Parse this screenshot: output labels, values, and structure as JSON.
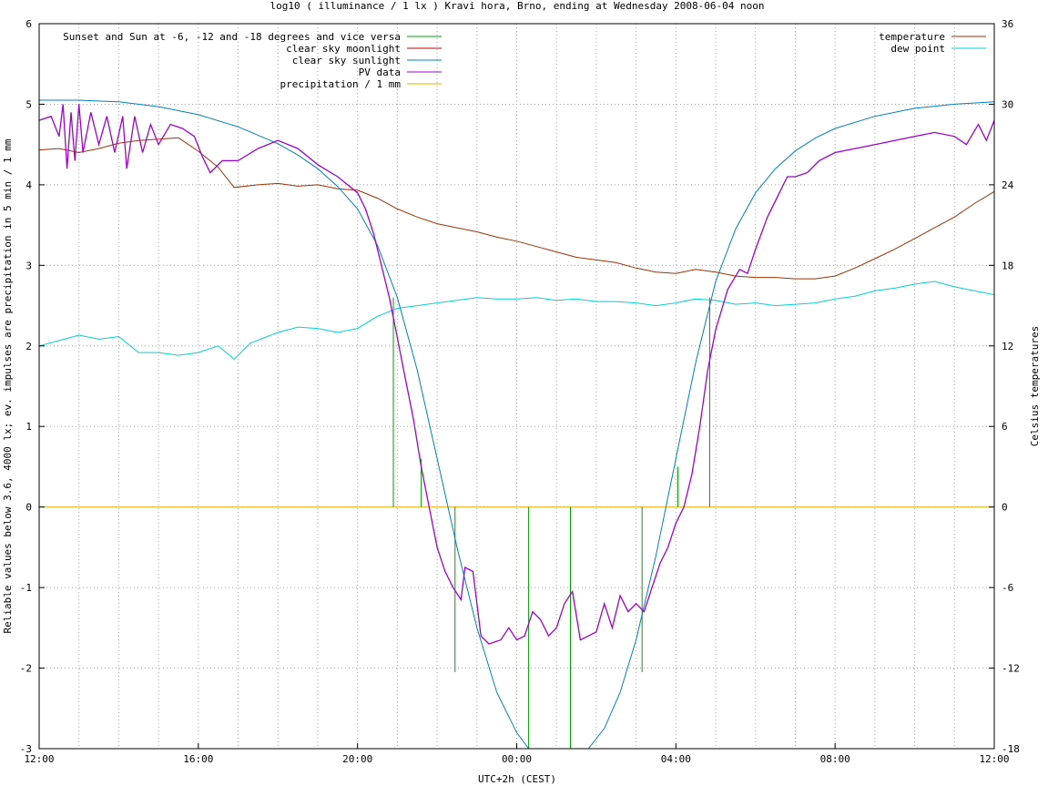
{
  "chart_data": {
    "type": "line",
    "title": "log10 ( illuminance / 1 lx ) Kravi hora, Brno, ending at Wednesday 2008-06-04 noon",
    "xlabel": "UTC+2h (CEST)",
    "ylabel_left": "Reliable values below 3.6, 4000 lx; ev. impulses are precipitation in 5 min / 1 mm",
    "ylabel_right": "Celsius temperatures",
    "x_unit": "hours from 12:00 (2008-06-03)",
    "xlim": [
      0,
      24
    ],
    "ylim_left": [
      -3,
      6
    ],
    "ylim_right": [
      -18,
      36
    ],
    "x_ticks": [
      {
        "x": 0,
        "label": "12:00"
      },
      {
        "x": 4,
        "label": "16:00"
      },
      {
        "x": 8,
        "label": "20:00"
      },
      {
        "x": 12,
        "label": "00:00"
      },
      {
        "x": 16,
        "label": "04:00"
      },
      {
        "x": 20,
        "label": "08:00"
      },
      {
        "x": 24,
        "label": "12:00"
      }
    ],
    "y_ticks_left": [
      "-3",
      "-2",
      "-1",
      "0",
      "1",
      "2",
      "3",
      "4",
      "5",
      "6"
    ],
    "y_ticks_right": [
      "-18",
      "-12",
      "-6",
      "0",
      "6",
      "12",
      "18",
      "24",
      "30",
      "36"
    ],
    "grid": true,
    "legend_left": [
      {
        "name": "Sunset and Sun at -6, -12 and -18 degrees and vice versa",
        "color": "#00a000"
      },
      {
        "name": "clear sky moonlight",
        "color": "#c00000"
      },
      {
        "name": "clear sky sunlight",
        "color": "#0080c0"
      },
      {
        "name": "PV data",
        "color": "#a000d0"
      },
      {
        "name": "precipitation / 1 mm",
        "color": "#e0b000"
      }
    ],
    "legend_right": [
      {
        "name": "temperature",
        "color": "#a03000"
      },
      {
        "name": "dew point",
        "color": "#00d0d8"
      }
    ],
    "series": {
      "sunlight": {
        "axis": "left",
        "points": [
          [
            0,
            5.05
          ],
          [
            1,
            5.05
          ],
          [
            2,
            5.03
          ],
          [
            3,
            4.97
          ],
          [
            4,
            4.87
          ],
          [
            5,
            4.72
          ],
          [
            6,
            4.51
          ],
          [
            6.5,
            4.37
          ],
          [
            7,
            4.2
          ],
          [
            7.5,
            3.98
          ],
          [
            8,
            3.7
          ],
          [
            8.5,
            3.25
          ],
          [
            9,
            2.6
          ],
          [
            9.5,
            1.7
          ],
          [
            10,
            0.6
          ],
          [
            10.5,
            -0.5
          ],
          [
            11,
            -1.5
          ],
          [
            11.5,
            -2.3
          ],
          [
            12,
            -2.8
          ],
          [
            12.3,
            -3.0
          ],
          [
            13.8,
            -3.0
          ],
          [
            14.2,
            -2.75
          ],
          [
            14.6,
            -2.3
          ],
          [
            15,
            -1.65
          ],
          [
            15.5,
            -0.6
          ],
          [
            16,
            0.6
          ],
          [
            16.5,
            1.8
          ],
          [
            17,
            2.8
          ],
          [
            17.5,
            3.45
          ],
          [
            18,
            3.9
          ],
          [
            18.5,
            4.2
          ],
          [
            19,
            4.42
          ],
          [
            19.5,
            4.58
          ],
          [
            20,
            4.7
          ],
          [
            21,
            4.85
          ],
          [
            22,
            4.95
          ],
          [
            23,
            5.0
          ],
          [
            24,
            5.03
          ]
        ]
      },
      "pv": {
        "axis": "left",
        "points": [
          [
            0,
            4.8
          ],
          [
            0.3,
            4.85
          ],
          [
            0.5,
            4.6
          ],
          [
            0.6,
            5.0
          ],
          [
            0.7,
            4.2
          ],
          [
            0.8,
            4.9
          ],
          [
            0.9,
            4.3
          ],
          [
            1.0,
            5.0
          ],
          [
            1.1,
            4.4
          ],
          [
            1.3,
            4.9
          ],
          [
            1.5,
            4.5
          ],
          [
            1.7,
            4.85
          ],
          [
            1.9,
            4.4
          ],
          [
            2.1,
            4.85
          ],
          [
            2.2,
            4.2
          ],
          [
            2.4,
            4.85
          ],
          [
            2.6,
            4.4
          ],
          [
            2.8,
            4.75
          ],
          [
            3.0,
            4.5
          ],
          [
            3.3,
            4.75
          ],
          [
            3.6,
            4.7
          ],
          [
            3.9,
            4.6
          ],
          [
            4.1,
            4.35
          ],
          [
            4.3,
            4.15
          ],
          [
            4.6,
            4.3
          ],
          [
            5.0,
            4.3
          ],
          [
            5.5,
            4.45
          ],
          [
            6.0,
            4.55
          ],
          [
            6.5,
            4.45
          ],
          [
            7.0,
            4.25
          ],
          [
            7.5,
            4.1
          ],
          [
            8.0,
            3.9
          ],
          [
            8.2,
            3.7
          ],
          [
            8.4,
            3.4
          ],
          [
            8.6,
            3.0
          ],
          [
            8.8,
            2.6
          ],
          [
            9.0,
            2.1
          ],
          [
            9.2,
            1.6
          ],
          [
            9.4,
            1.1
          ],
          [
            9.6,
            0.5
          ],
          [
            9.8,
            0.0
          ],
          [
            10.0,
            -0.5
          ],
          [
            10.2,
            -0.8
          ],
          [
            10.4,
            -1.0
          ],
          [
            10.6,
            -1.15
          ],
          [
            10.7,
            -0.75
          ],
          [
            10.9,
            -0.8
          ],
          [
            11.1,
            -1.6
          ],
          [
            11.3,
            -1.7
          ],
          [
            11.6,
            -1.65
          ],
          [
            11.8,
            -1.5
          ],
          [
            12.0,
            -1.65
          ],
          [
            12.2,
            -1.6
          ],
          [
            12.4,
            -1.3
          ],
          [
            12.6,
            -1.4
          ],
          [
            12.8,
            -1.6
          ],
          [
            13.0,
            -1.5
          ],
          [
            13.2,
            -1.2
          ],
          [
            13.4,
            -1.05
          ],
          [
            13.6,
            -1.65
          ],
          [
            13.8,
            -1.6
          ],
          [
            14.0,
            -1.55
          ],
          [
            14.2,
            -1.2
          ],
          [
            14.4,
            -1.5
          ],
          [
            14.6,
            -1.1
          ],
          [
            14.8,
            -1.3
          ],
          [
            15.0,
            -1.2
          ],
          [
            15.2,
            -1.3
          ],
          [
            15.4,
            -1.0
          ],
          [
            15.6,
            -0.7
          ],
          [
            15.8,
            -0.5
          ],
          [
            16.0,
            -0.2
          ],
          [
            16.2,
            0.0
          ],
          [
            16.4,
            0.4
          ],
          [
            16.6,
            1.0
          ],
          [
            16.8,
            1.7
          ],
          [
            17.0,
            2.2
          ],
          [
            17.3,
            2.7
          ],
          [
            17.6,
            2.95
          ],
          [
            17.8,
            2.9
          ],
          [
            18.0,
            3.2
          ],
          [
            18.3,
            3.6
          ],
          [
            18.6,
            3.9
          ],
          [
            18.8,
            4.1
          ],
          [
            19.0,
            4.1
          ],
          [
            19.3,
            4.15
          ],
          [
            19.6,
            4.3
          ],
          [
            20.0,
            4.4
          ],
          [
            20.5,
            4.45
          ],
          [
            21.0,
            4.5
          ],
          [
            21.5,
            4.55
          ],
          [
            22.0,
            4.6
          ],
          [
            22.5,
            4.65
          ],
          [
            23.0,
            4.6
          ],
          [
            23.3,
            4.5
          ],
          [
            23.6,
            4.75
          ],
          [
            23.8,
            4.55
          ],
          [
            24.0,
            4.8
          ]
        ]
      },
      "temperature": {
        "axis": "right",
        "points": [
          [
            0,
            26.6
          ],
          [
            0.5,
            26.7
          ],
          [
            1,
            26.4
          ],
          [
            1.5,
            26.7
          ],
          [
            2,
            27.1
          ],
          [
            2.5,
            27.3
          ],
          [
            3,
            27.4
          ],
          [
            3.5,
            27.5
          ],
          [
            4,
            26.5
          ],
          [
            4.5,
            25.3
          ],
          [
            4.9,
            23.8
          ],
          [
            5.5,
            24.0
          ],
          [
            6,
            24.1
          ],
          [
            6.5,
            23.9
          ],
          [
            7,
            24.0
          ],
          [
            7.5,
            23.7
          ],
          [
            8,
            23.6
          ],
          [
            8.5,
            23.0
          ],
          [
            9,
            22.2
          ],
          [
            9.5,
            21.6
          ],
          [
            10,
            21.1
          ],
          [
            10.5,
            20.8
          ],
          [
            11,
            20.5
          ],
          [
            11.5,
            20.1
          ],
          [
            12,
            19.8
          ],
          [
            12.5,
            19.4
          ],
          [
            13,
            19.0
          ],
          [
            13.5,
            18.6
          ],
          [
            14,
            18.4
          ],
          [
            14.5,
            18.2
          ],
          [
            15,
            17.8
          ],
          [
            15.5,
            17.5
          ],
          [
            16,
            17.4
          ],
          [
            16.5,
            17.7
          ],
          [
            17,
            17.5
          ],
          [
            17.5,
            17.2
          ],
          [
            18,
            17.1
          ],
          [
            18.5,
            17.1
          ],
          [
            19,
            17.0
          ],
          [
            19.5,
            17.0
          ],
          [
            20,
            17.2
          ],
          [
            20.5,
            17.8
          ],
          [
            21,
            18.5
          ],
          [
            21.5,
            19.2
          ],
          [
            22,
            20.0
          ],
          [
            22.5,
            20.8
          ],
          [
            23,
            21.6
          ],
          [
            23.5,
            22.6
          ],
          [
            24,
            23.5
          ]
        ]
      },
      "dew_point": {
        "axis": "right",
        "points": [
          [
            0,
            12.0
          ],
          [
            0.5,
            12.4
          ],
          [
            1,
            12.8
          ],
          [
            1.5,
            12.5
          ],
          [
            2,
            12.7
          ],
          [
            2.5,
            11.5
          ],
          [
            3,
            11.5
          ],
          [
            3.5,
            11.3
          ],
          [
            4,
            11.5
          ],
          [
            4.5,
            12.0
          ],
          [
            4.9,
            11.0
          ],
          [
            5.3,
            12.2
          ],
          [
            6,
            13.0
          ],
          [
            6.5,
            13.4
          ],
          [
            7,
            13.3
          ],
          [
            7.5,
            13.0
          ],
          [
            8,
            13.3
          ],
          [
            8.5,
            14.2
          ],
          [
            9,
            14.8
          ],
          [
            9.5,
            15.0
          ],
          [
            10,
            15.2
          ],
          [
            10.5,
            15.4
          ],
          [
            11,
            15.6
          ],
          [
            11.5,
            15.5
          ],
          [
            12,
            15.5
          ],
          [
            12.5,
            15.6
          ],
          [
            13,
            15.4
          ],
          [
            13.5,
            15.5
          ],
          [
            14,
            15.3
          ],
          [
            14.5,
            15.3
          ],
          [
            15,
            15.2
          ],
          [
            15.5,
            15.0
          ],
          [
            16,
            15.2
          ],
          [
            16.5,
            15.5
          ],
          [
            17,
            15.4
          ],
          [
            17.5,
            15.1
          ],
          [
            18,
            15.2
          ],
          [
            18.5,
            15.0
          ],
          [
            19,
            15.1
          ],
          [
            19.5,
            15.2
          ],
          [
            20,
            15.5
          ],
          [
            20.5,
            15.7
          ],
          [
            21,
            16.1
          ],
          [
            21.5,
            16.3
          ],
          [
            22,
            16.6
          ],
          [
            22.5,
            16.8
          ],
          [
            23,
            16.4
          ],
          [
            23.5,
            16.1
          ],
          [
            24,
            15.8
          ]
        ]
      },
      "moonlight": {
        "axis": "left",
        "points": []
      },
      "sun_angle_impulses": {
        "axis": "left",
        "points": [
          [
            8.9,
            2.6
          ],
          [
            9.6,
            0.6
          ],
          [
            10.45,
            -2.05
          ],
          [
            12.3,
            -3.0
          ],
          [
            13.35,
            -3.0
          ],
          [
            15.15,
            -2.05
          ],
          [
            16.05,
            0.5
          ],
          [
            16.85,
            2.6
          ]
        ]
      },
      "precipitation": {
        "axis": "left",
        "points": [
          [
            0,
            0
          ],
          [
            24,
            0
          ]
        ]
      }
    }
  }
}
